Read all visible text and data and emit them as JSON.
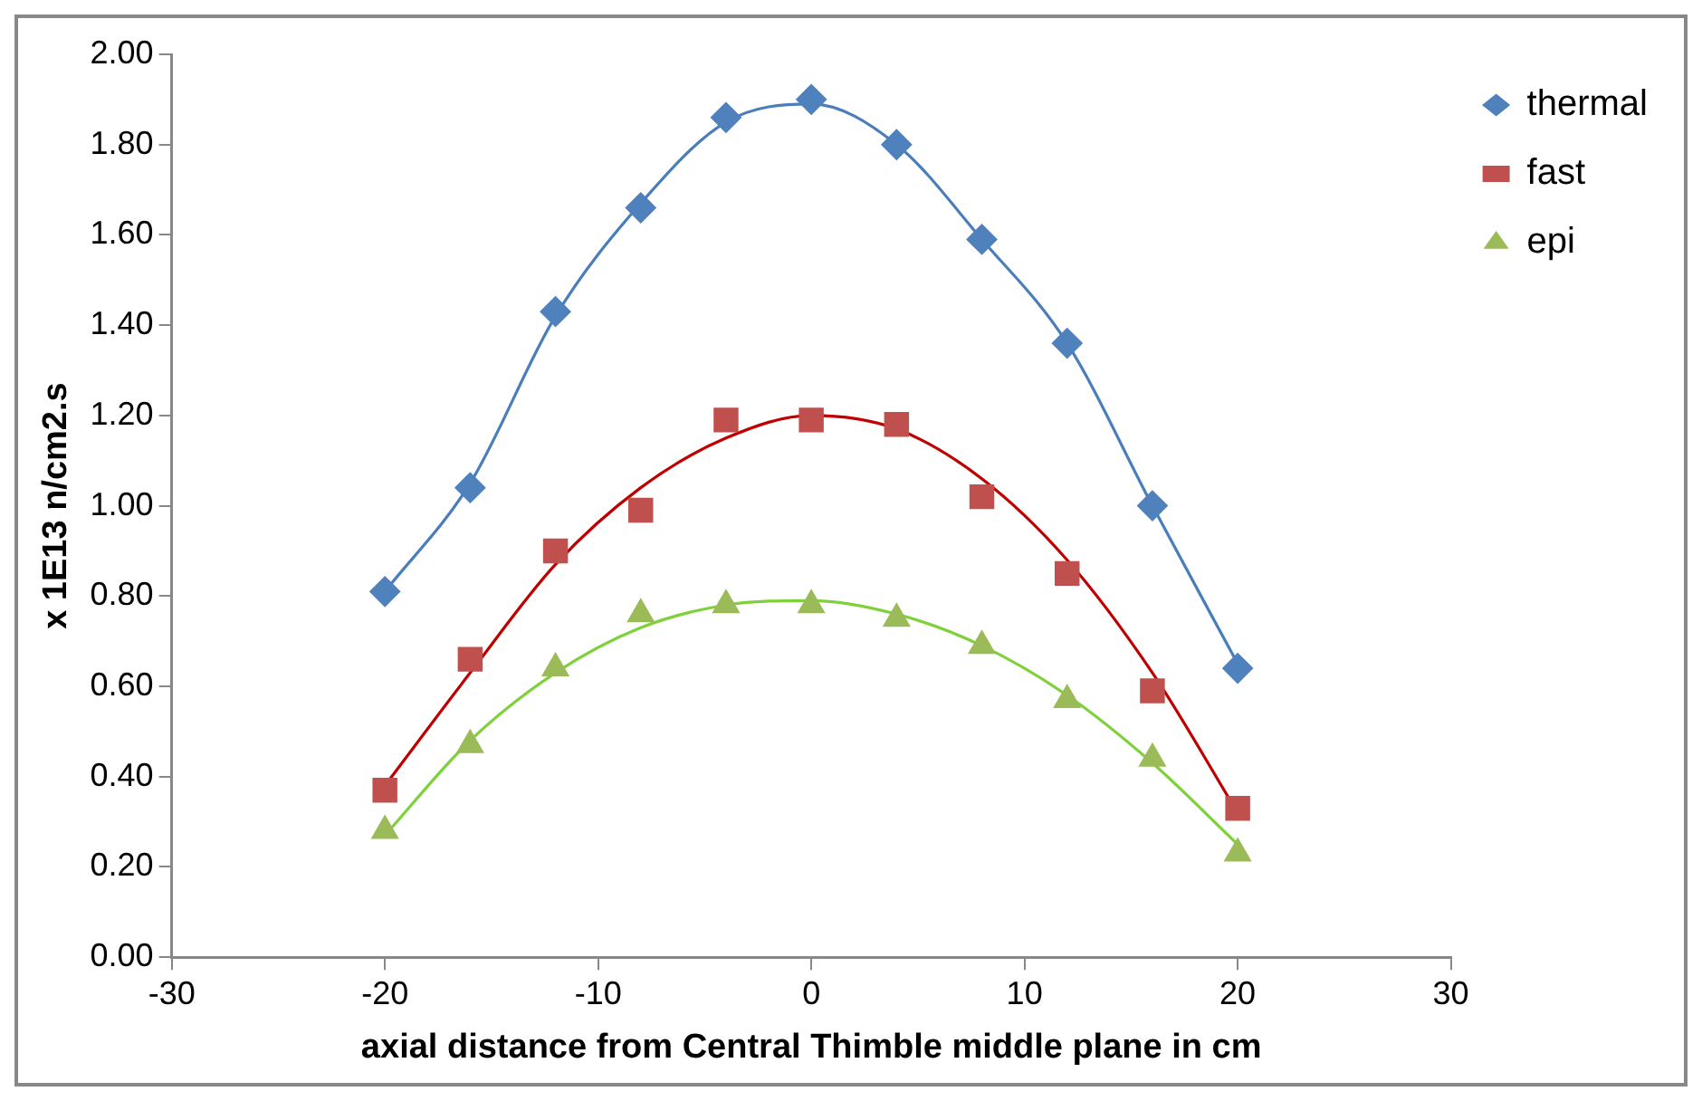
{
  "chart_data": {
    "type": "scatter",
    "xlabel": "axial distance from Central Thimble middle plane in cm",
    "ylabel": "x 1E13 n/cm2.s",
    "xlim": [
      -30,
      30
    ],
    "xticks": [
      -30,
      -20,
      -10,
      0,
      10,
      20,
      30
    ],
    "ylim": [
      0,
      2
    ],
    "yticks": [
      {
        "value": 0,
        "label": "0.00"
      },
      {
        "value": 0.2,
        "label": "0.20"
      },
      {
        "value": 0.4,
        "label": "0.40"
      },
      {
        "value": 0.6,
        "label": "0.60"
      },
      {
        "value": 0.8,
        "label": "0.80"
      },
      {
        "value": 1,
        "label": "1.00"
      },
      {
        "value": 1.2,
        "label": "1.20"
      },
      {
        "value": 1.4,
        "label": "1.40"
      },
      {
        "value": 1.6,
        "label": "1.60"
      },
      {
        "value": 1.8,
        "label": "1.80"
      },
      {
        "value": 2,
        "label": "2.00"
      }
    ],
    "grid": false,
    "legend": "right",
    "x": [
      -20,
      -16,
      -12,
      -8,
      -4,
      0,
      4,
      8,
      12,
      16,
      20
    ],
    "series": [
      {
        "name": "thermal",
        "marker": "diamond",
        "color": "#4f81bd",
        "values": [
          0.81,
          1.04,
          1.43,
          1.66,
          1.86,
          1.9,
          1.8,
          1.59,
          1.36,
          1.0,
          0.64
        ]
      },
      {
        "name": "fast",
        "marker": "square",
        "color": "#c0504d",
        "values": [
          0.37,
          0.66,
          0.9,
          0.99,
          1.19,
          1.19,
          1.18,
          1.02,
          0.85,
          0.59,
          0.33
        ]
      },
      {
        "name": "epi",
        "marker": "triangle",
        "color": "#9bbb59",
        "values": [
          0.28,
          0.47,
          0.64,
          0.76,
          0.78,
          0.78,
          0.75,
          0.69,
          0.57,
          0.44,
          0.23
        ]
      },
      {
        "type": "line",
        "marker": "none",
        "color": "#4a7ebb",
        "x": [
          -20,
          -16,
          -12,
          -8,
          -4,
          0,
          4,
          8,
          12,
          16,
          20
        ],
        "values": [
          0.81,
          1.05,
          1.42,
          1.67,
          1.85,
          1.89,
          1.8,
          1.59,
          1.36,
          1.0,
          0.65
        ]
      },
      {
        "type": "line",
        "marker": "none",
        "color": "#c00000",
        "x": [
          -20,
          -16,
          -12,
          -8,
          -4,
          0,
          4,
          8,
          12,
          16,
          20
        ],
        "values": [
          0.38,
          0.63,
          0.87,
          1.04,
          1.15,
          1.2,
          1.17,
          1.06,
          0.88,
          0.63,
          0.32
        ]
      },
      {
        "type": "line",
        "marker": "none",
        "color": "#7fd13b",
        "x": [
          -20,
          -16,
          -12,
          -8,
          -4,
          0,
          4,
          8,
          12,
          16,
          20
        ],
        "values": [
          0.27,
          0.48,
          0.63,
          0.73,
          0.78,
          0.79,
          0.76,
          0.69,
          0.58,
          0.43,
          0.25
        ]
      }
    ]
  }
}
